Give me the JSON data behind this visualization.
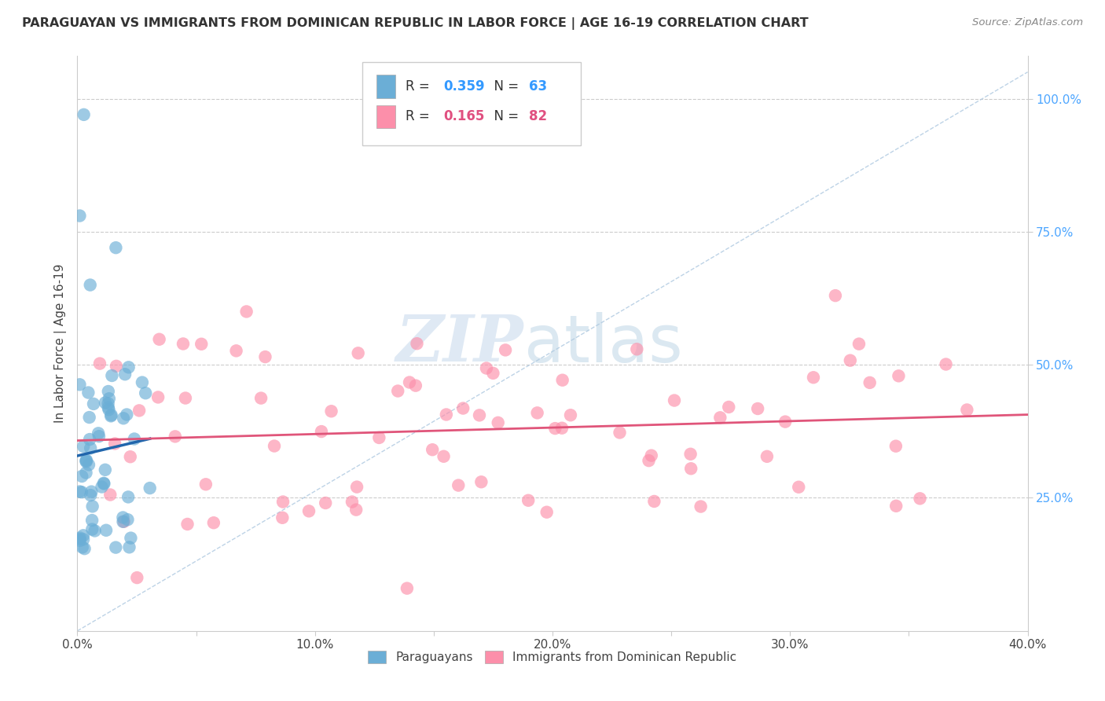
{
  "title": "PARAGUAYAN VS IMMIGRANTS FROM DOMINICAN REPUBLIC IN LABOR FORCE | AGE 16-19 CORRELATION CHART",
  "source": "Source: ZipAtlas.com",
  "ylabel": "In Labor Force | Age 16-19",
  "xlim": [
    0.0,
    0.4
  ],
  "ylim": [
    0.0,
    1.05
  ],
  "xtick_values": [
    0.0,
    0.05,
    0.1,
    0.15,
    0.2,
    0.25,
    0.3,
    0.35,
    0.4
  ],
  "xtick_major": [
    0.0,
    0.1,
    0.2,
    0.3,
    0.4
  ],
  "xtick_major_labels": [
    "0.0%",
    "10.0%",
    "20.0%",
    "30.0%",
    "40.0%"
  ],
  "ytick_values": [
    0.25,
    0.5,
    0.75,
    1.0
  ],
  "ytick_labels": [
    "25.0%",
    "50.0%",
    "75.0%",
    "100.0%"
  ],
  "blue_R": 0.359,
  "blue_N": 63,
  "pink_R": 0.165,
  "pink_N": 82,
  "blue_color": "#6baed6",
  "pink_color": "#fc8faa",
  "blue_line_color": "#2166ac",
  "pink_line_color": "#e0557a",
  "diag_line_color": "#adc8e0",
  "background_color": "#ffffff",
  "watermark_zip": "ZIP",
  "watermark_atlas": "atlas",
  "legend_label_blue": "Paraguayans",
  "legend_label_pink": "Immigrants from Dominican Republic"
}
